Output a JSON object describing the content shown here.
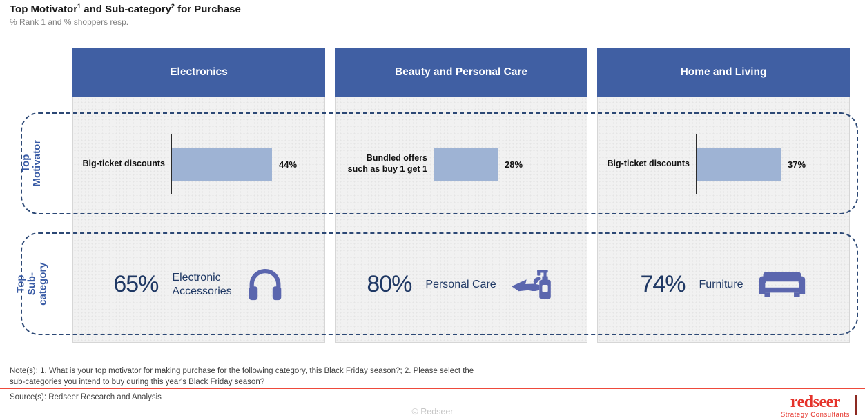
{
  "title": {
    "part1": "Top Motivator",
    "sup1": "1",
    "part2": " and Sub-category",
    "sup2": "2",
    "part3": " for Purchase"
  },
  "subtitle": "% Rank 1 and % shoppers resp.",
  "row_labels": {
    "motivator": "Top Motivator",
    "subcategory": "Top Sub-\ncategory"
  },
  "chart_data": {
    "type": "bar",
    "title": "Top Motivator and Sub-category for Purchase",
    "subtitle": "% Rank 1 and % shoppers resp.",
    "unit": "%",
    "xlim": [
      0,
      100
    ],
    "row_labels": [
      "Top Motivator",
      "Top Sub-category"
    ],
    "columns": [
      {
        "category": "Electronics",
        "top_motivator": {
          "label": "Big-ticket discounts",
          "value_pct": 44,
          "value_label": "44%"
        },
        "top_subcategory": {
          "value_pct": 65,
          "value_label": "65%",
          "label": "Electronic\nAccessories",
          "icon": "headphones-icon"
        }
      },
      {
        "category": "Beauty and Personal Care",
        "top_motivator": {
          "label": "Bundled offers\nsuch as buy 1 get 1",
          "value_pct": 28,
          "value_label": "28%"
        },
        "top_subcategory": {
          "value_pct": 80,
          "value_label": "80%",
          "label": "Personal Care",
          "icon": "soap-dispenser-hand-icon"
        }
      },
      {
        "category": "Home and Living",
        "top_motivator": {
          "label": "Big-ticket discounts",
          "value_pct": 37,
          "value_label": "37%"
        },
        "top_subcategory": {
          "value_pct": 74,
          "value_label": "74%",
          "label": "Furniture",
          "icon": "sofa-icon"
        }
      }
    ]
  },
  "footer": {
    "notes": "Note(s): 1. What is your top motivator for making purchase for the following category, this Black Friday season?; 2. Please select the\nsub-categories you intend to buy during this year's Black Friday season?",
    "source": "Source(s): Redseer Research and Analysis",
    "copyright": "© Redseer",
    "logo_text": "redseer",
    "logo_tagline": "Strategy Consultants"
  },
  "theme": {
    "header_blue": "#405FA3",
    "bar_fill": "#9EB3D4",
    "navy_text": "#1F3864",
    "row_label_blue": "#3A5CA6",
    "dashed_border": "#2C4875",
    "icon_purple": "#5B66AE",
    "logo_red": "#E5332B",
    "rule_red": "#EE4A3B"
  }
}
